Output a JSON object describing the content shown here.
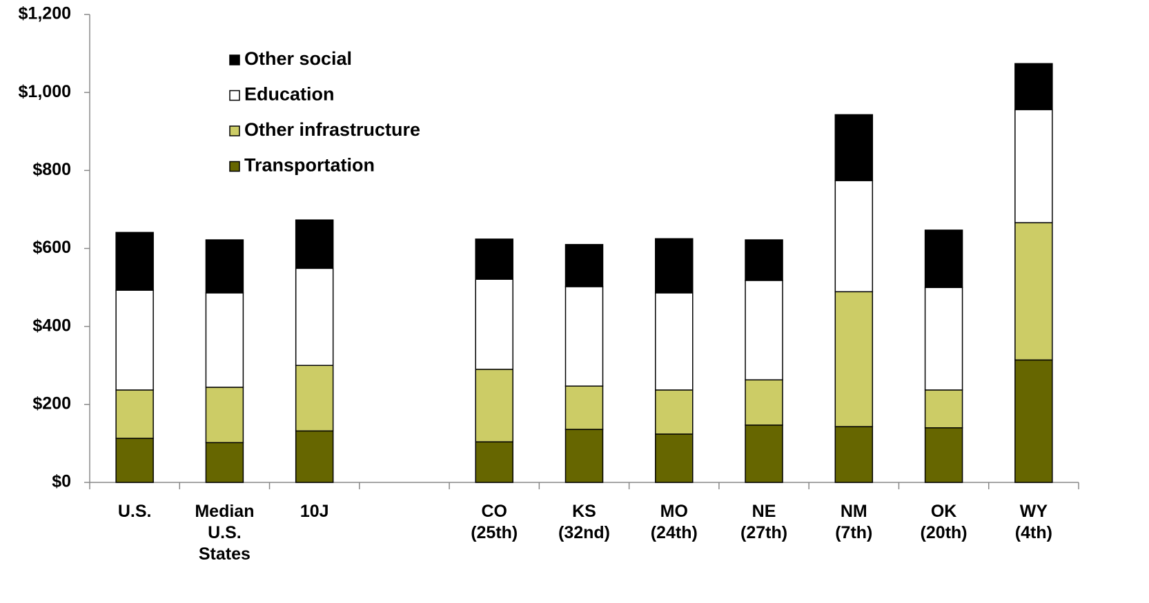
{
  "chart_data": {
    "type": "stacked-bar",
    "categories": [
      "U.S.",
      "Median U.S. States",
      "10J",
      null,
      "CO (25th)",
      "KS (32nd)",
      "MO (24th)",
      "NE (27th)",
      "NM (7th)",
      "OK (20th)",
      "WY (4th)"
    ],
    "series": [
      {
        "name": "Transportation",
        "color": "#666600",
        "values": [
          113,
          102,
          132,
          null,
          104,
          136,
          124,
          147,
          143,
          140,
          314
        ]
      },
      {
        "name": "Other infrastructure",
        "color": "#cccc66",
        "values": [
          124,
          142,
          168,
          null,
          186,
          111,
          113,
          116,
          346,
          97,
          352
        ]
      },
      {
        "name": "Education",
        "color": "#ffffff",
        "values": [
          256,
          242,
          249,
          null,
          231,
          255,
          249,
          255,
          285,
          263,
          290
        ]
      },
      {
        "name": "Other social",
        "color": "#000000",
        "values": [
          148,
          136,
          124,
          null,
          103,
          108,
          139,
          104,
          169,
          147,
          118
        ]
      }
    ],
    "ylim": [
      0,
      1200
    ],
    "yticks": [
      {
        "value": 0,
        "label": "$0"
      },
      {
        "value": 200,
        "label": "$200"
      },
      {
        "value": 400,
        "label": "$400"
      },
      {
        "value": 600,
        "label": "$600"
      },
      {
        "value": 800,
        "label": "$800"
      },
      {
        "value": 1000,
        "label": "$1,000"
      },
      {
        "value": 1200,
        "label": "$1,200"
      }
    ],
    "legend": "upper-left"
  }
}
